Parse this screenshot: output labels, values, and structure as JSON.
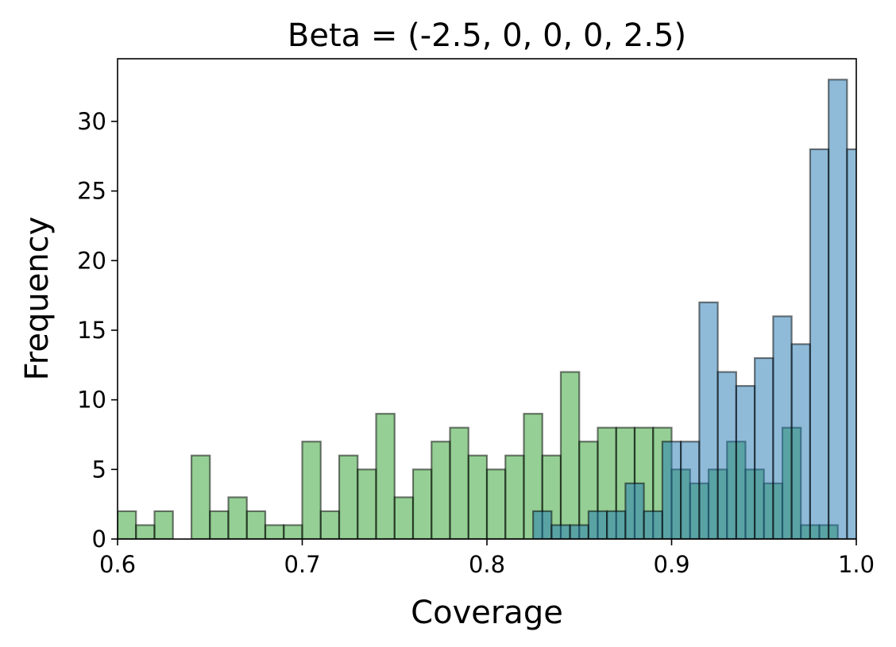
{
  "chart_data": {
    "type": "bar",
    "title": "Beta = (-2.5, 0, 0, 0, 2.5)",
    "xlabel": "Coverage",
    "ylabel": "Frequency",
    "xlim": [
      0.6,
      1.0
    ],
    "ylim": [
      0,
      34.5
    ],
    "x_ticks": [
      0.6,
      0.7,
      0.8,
      0.9,
      1.0
    ],
    "x_tick_labels": [
      "0.6",
      "0.7",
      "0.8",
      "0.9",
      "1.0"
    ],
    "y_ticks": [
      0,
      5,
      10,
      15,
      20,
      25,
      30
    ],
    "y_tick_labels": [
      "0",
      "5",
      "10",
      "15",
      "20",
      "25",
      "30"
    ],
    "grid": false,
    "series": [
      {
        "color": "#2ca02c",
        "alpha": 0.5,
        "bins": [
          {
            "x0": 0.6,
            "x1": 0.61,
            "count": 2
          },
          {
            "x0": 0.61,
            "x1": 0.62,
            "count": 1
          },
          {
            "x0": 0.62,
            "x1": 0.63,
            "count": 2
          },
          {
            "x0": 0.63,
            "x1": 0.64,
            "count": 0
          },
          {
            "x0": 0.64,
            "x1": 0.65,
            "count": 6
          },
          {
            "x0": 0.65,
            "x1": 0.66,
            "count": 2
          },
          {
            "x0": 0.66,
            "x1": 0.67,
            "count": 3
          },
          {
            "x0": 0.67,
            "x1": 0.68,
            "count": 2
          },
          {
            "x0": 0.68,
            "x1": 0.69,
            "count": 1
          },
          {
            "x0": 0.69,
            "x1": 0.7,
            "count": 1
          },
          {
            "x0": 0.7,
            "x1": 0.71,
            "count": 7
          },
          {
            "x0": 0.71,
            "x1": 0.72,
            "count": 2
          },
          {
            "x0": 0.72,
            "x1": 0.73,
            "count": 6
          },
          {
            "x0": 0.73,
            "x1": 0.74,
            "count": 5
          },
          {
            "x0": 0.74,
            "x1": 0.75,
            "count": 9
          },
          {
            "x0": 0.75,
            "x1": 0.76,
            "count": 3
          },
          {
            "x0": 0.76,
            "x1": 0.77,
            "count": 5
          },
          {
            "x0": 0.77,
            "x1": 0.78,
            "count": 7
          },
          {
            "x0": 0.78,
            "x1": 0.79,
            "count": 8
          },
          {
            "x0": 0.79,
            "x1": 0.8,
            "count": 6
          },
          {
            "x0": 0.8,
            "x1": 0.81,
            "count": 5
          },
          {
            "x0": 0.81,
            "x1": 0.82,
            "count": 6
          },
          {
            "x0": 0.82,
            "x1": 0.83,
            "count": 9
          },
          {
            "x0": 0.83,
            "x1": 0.84,
            "count": 6
          },
          {
            "x0": 0.84,
            "x1": 0.85,
            "count": 12
          },
          {
            "x0": 0.85,
            "x1": 0.86,
            "count": 7
          },
          {
            "x0": 0.86,
            "x1": 0.87,
            "count": 8
          },
          {
            "x0": 0.87,
            "x1": 0.88,
            "count": 8
          },
          {
            "x0": 0.88,
            "x1": 0.89,
            "count": 8
          },
          {
            "x0": 0.89,
            "x1": 0.9,
            "count": 8
          },
          {
            "x0": 0.9,
            "x1": 0.91,
            "count": 5
          },
          {
            "x0": 0.91,
            "x1": 0.92,
            "count": 4
          },
          {
            "x0": 0.92,
            "x1": 0.93,
            "count": 5
          },
          {
            "x0": 0.93,
            "x1": 0.94,
            "count": 7
          },
          {
            "x0": 0.94,
            "x1": 0.95,
            "count": 5
          },
          {
            "x0": 0.95,
            "x1": 0.96,
            "count": 4
          },
          {
            "x0": 0.96,
            "x1": 0.97,
            "count": 8
          },
          {
            "x0": 0.97,
            "x1": 0.98,
            "count": 1
          },
          {
            "x0": 0.98,
            "x1": 0.99,
            "count": 1
          }
        ]
      },
      {
        "color": "#1f77b4",
        "alpha": 0.5,
        "bins": [
          {
            "x0": 0.825,
            "x1": 0.835,
            "count": 2
          },
          {
            "x0": 0.835,
            "x1": 0.845,
            "count": 1
          },
          {
            "x0": 0.845,
            "x1": 0.855,
            "count": 1
          },
          {
            "x0": 0.855,
            "x1": 0.865,
            "count": 2
          },
          {
            "x0": 0.865,
            "x1": 0.875,
            "count": 2
          },
          {
            "x0": 0.875,
            "x1": 0.885,
            "count": 4
          },
          {
            "x0": 0.885,
            "x1": 0.895,
            "count": 2
          },
          {
            "x0": 0.895,
            "x1": 0.905,
            "count": 7
          },
          {
            "x0": 0.905,
            "x1": 0.915,
            "count": 7
          },
          {
            "x0": 0.915,
            "x1": 0.925,
            "count": 17
          },
          {
            "x0": 0.925,
            "x1": 0.935,
            "count": 12
          },
          {
            "x0": 0.935,
            "x1": 0.945,
            "count": 11
          },
          {
            "x0": 0.945,
            "x1": 0.955,
            "count": 13
          },
          {
            "x0": 0.955,
            "x1": 0.965,
            "count": 16
          },
          {
            "x0": 0.965,
            "x1": 0.975,
            "count": 14
          },
          {
            "x0": 0.975,
            "x1": 0.985,
            "count": 28
          },
          {
            "x0": 0.985,
            "x1": 0.995,
            "count": 33
          },
          {
            "x0": 0.995,
            "x1": 1.005,
            "count": 28
          }
        ]
      }
    ]
  }
}
